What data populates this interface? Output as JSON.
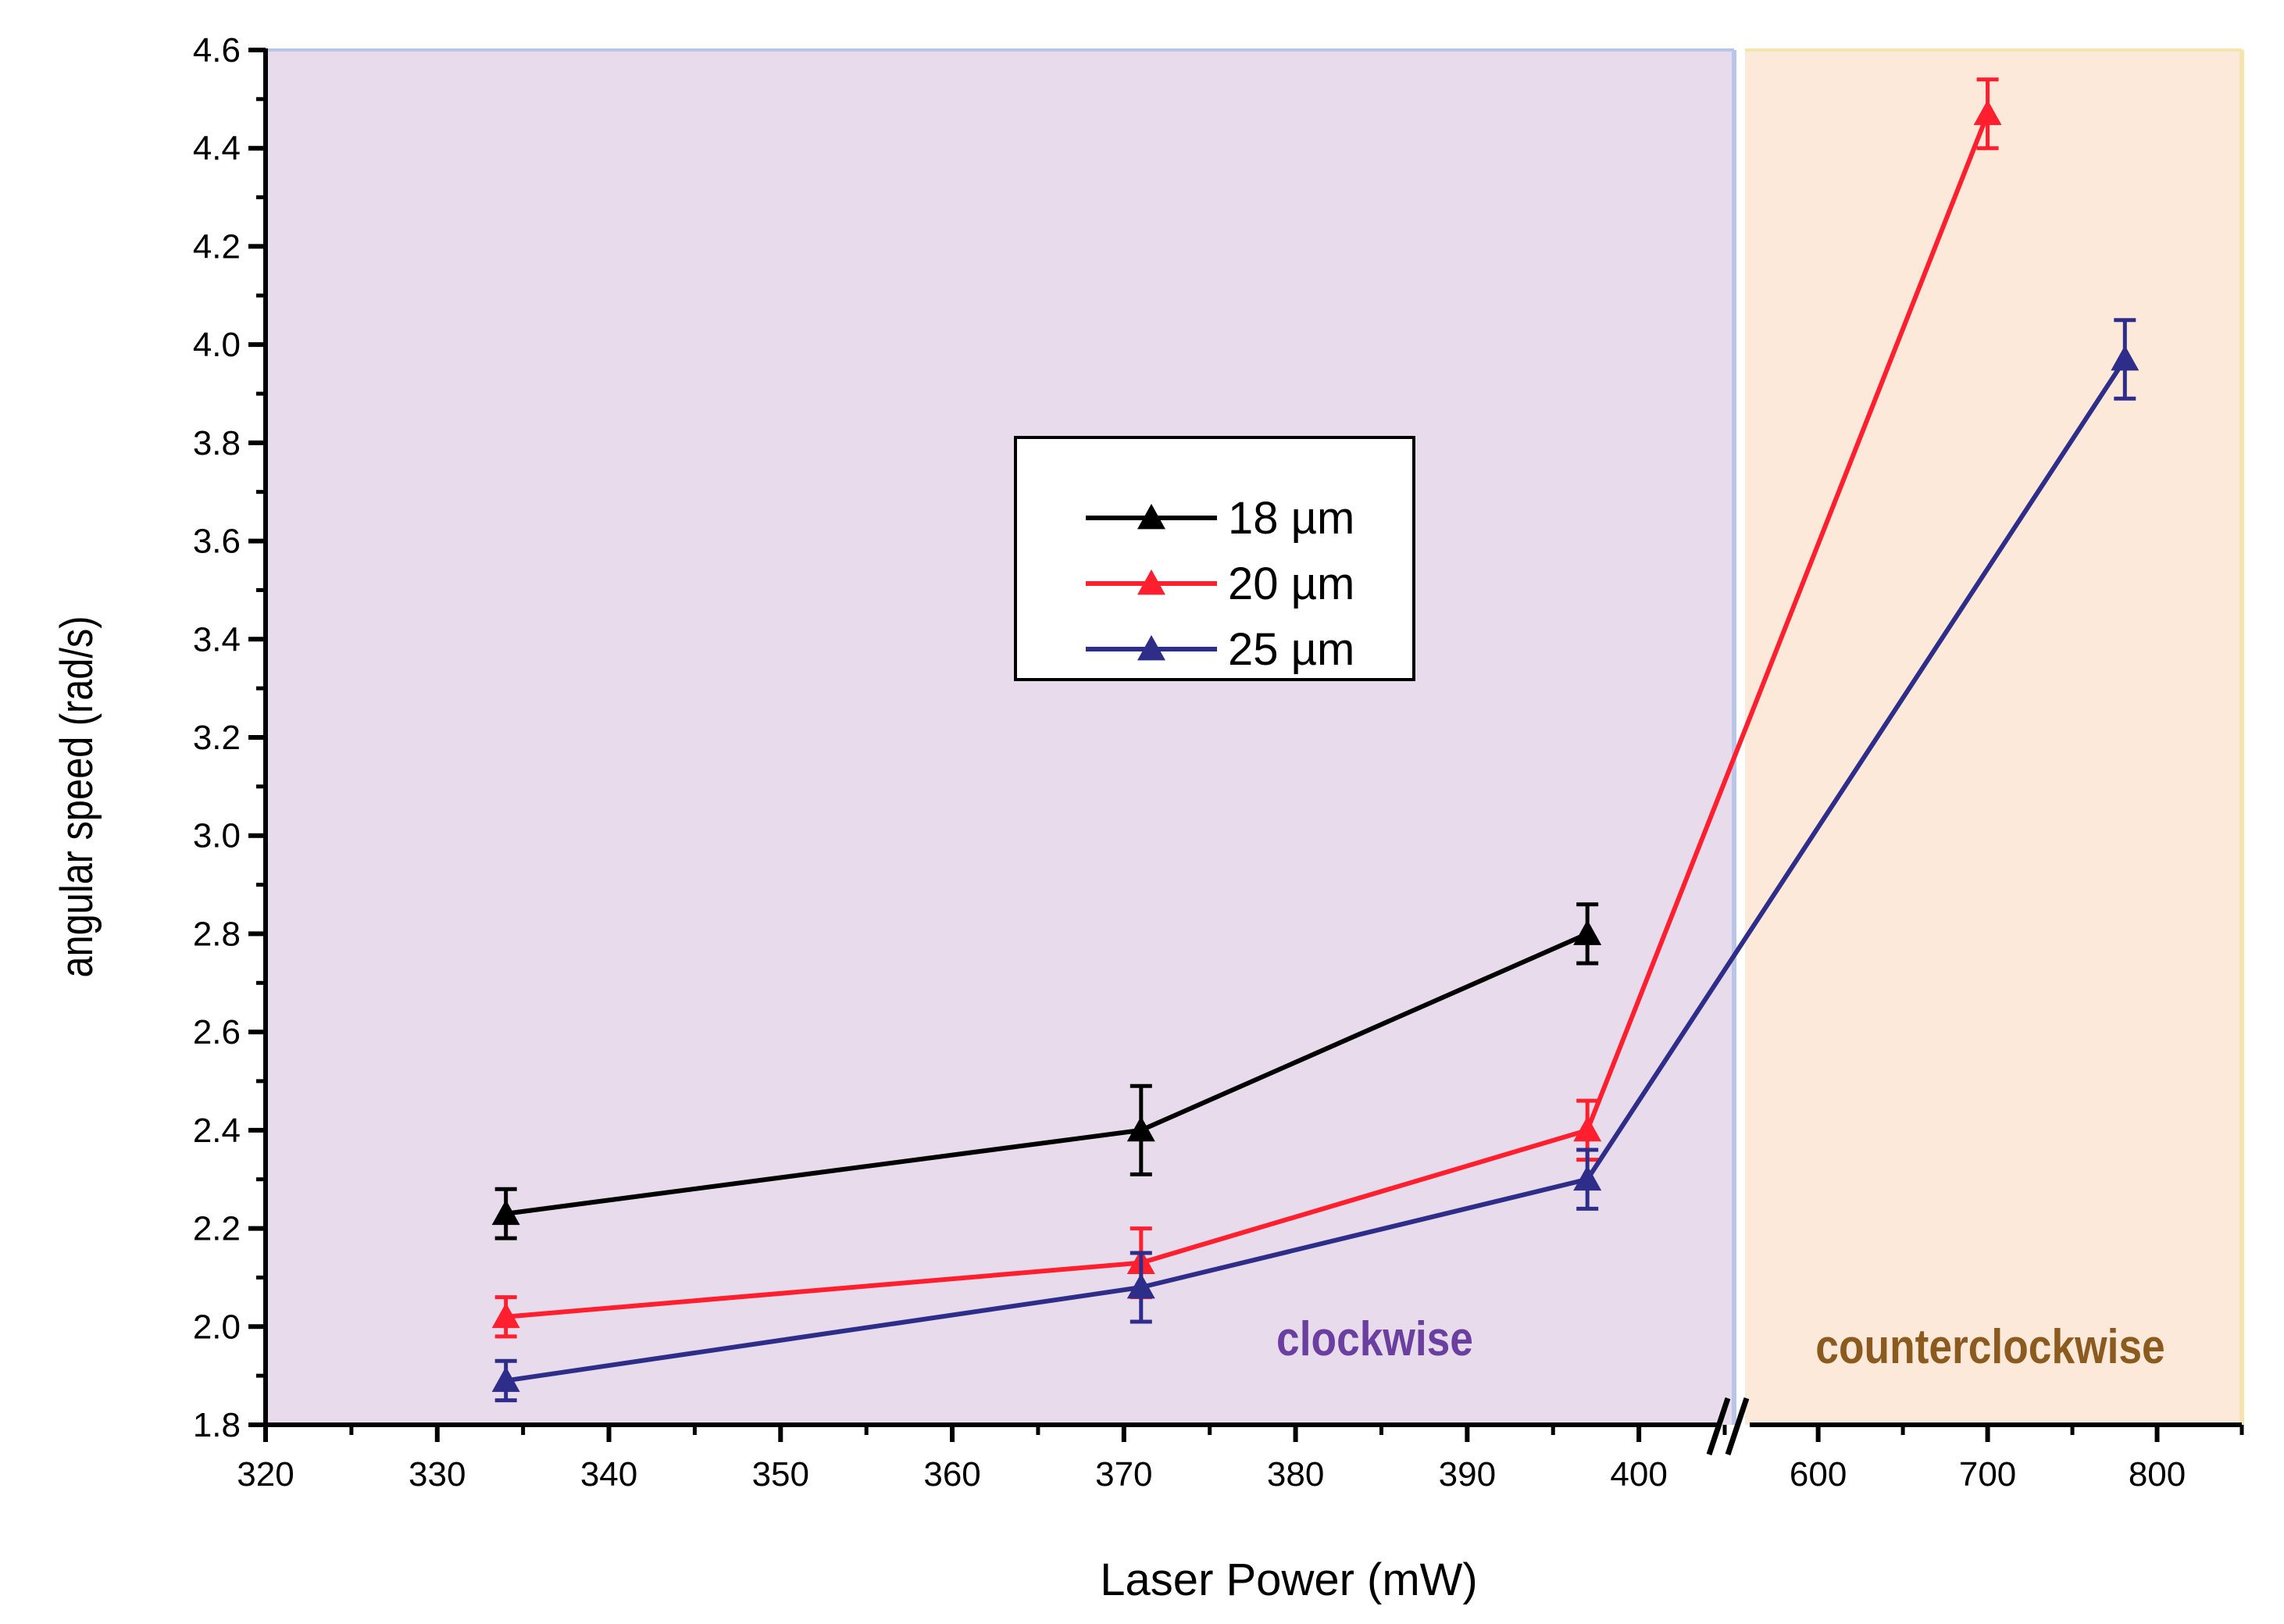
{
  "chart_data": {
    "type": "line",
    "xlabel": "Laser Power (mW)",
    "ylabel": "angular speed (rad/s)",
    "ylim": [
      1.8,
      4.6
    ],
    "yticks": [
      "1.8",
      "2.0",
      "2.2",
      "2.4",
      "2.6",
      "2.8",
      "3.0",
      "3.2",
      "3.4",
      "3.6",
      "3.8",
      "4.0",
      "4.2",
      "4.4",
      "4.6"
    ],
    "x_axis_segments": [
      {
        "range": [
          320,
          405
        ],
        "ticks": [
          "320",
          "330",
          "340",
          "350",
          "360",
          "370",
          "380",
          "390",
          "400"
        ]
      },
      {
        "range": [
          555,
          850
        ],
        "ticks": [
          "600",
          "700",
          "800"
        ]
      }
    ],
    "regions": [
      {
        "label": "clockwise",
        "color": "#e8dcec",
        "text_color": "#6b3fa0"
      },
      {
        "label": "counterclockwise",
        "color": "#fde9da",
        "text_color": "#8b5a1e"
      }
    ],
    "series": [
      {
        "name": "18 µm",
        "color": "#000000",
        "x": [
          334,
          371,
          397
        ],
        "y": [
          2.23,
          2.4,
          2.8
        ],
        "err": [
          0.05,
          0.09,
          0.06
        ]
      },
      {
        "name": "20 µm",
        "color": "#ff1f2e",
        "x": [
          334,
          371,
          397,
          700
        ],
        "y": [
          2.02,
          2.13,
          2.4,
          4.47
        ],
        "err": [
          0.04,
          0.07,
          0.06,
          0.07
        ]
      },
      {
        "name": "25 µm",
        "color": "#2e2e8a",
        "x": [
          334,
          371,
          397,
          781
        ],
        "y": [
          1.89,
          2.08,
          2.3,
          3.97
        ],
        "err": [
          0.04,
          0.07,
          0.06,
          0.08
        ]
      }
    ]
  }
}
